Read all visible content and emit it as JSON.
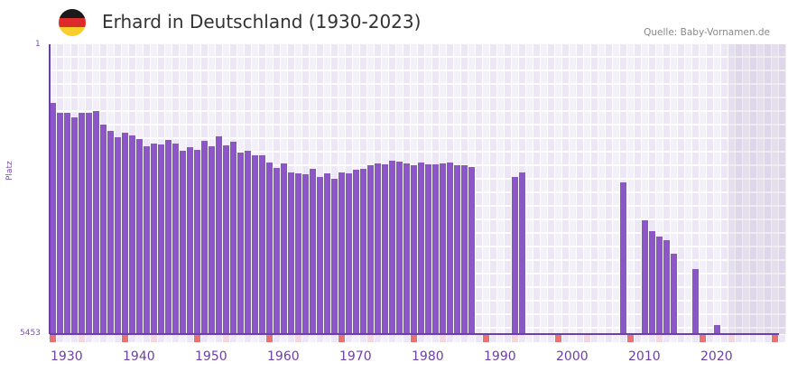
{
  "header": {
    "title": "Erhard in Deutschland (1930-2023)",
    "source": "Quelle: Baby-Vornamen.de",
    "flag_colors": [
      "#1a1a1a",
      "#dd2b2b",
      "#f9cf2d"
    ]
  },
  "colors": {
    "bar": "#8c55c8",
    "axis": "#6d3fa8",
    "grid_a": "#f3effb",
    "grid_b": "#ece6f7",
    "decade_marker": "#e57373",
    "mid_marker": "#f5d5de"
  },
  "chart_data": {
    "type": "bar",
    "title": "Erhard in Deutschland (1930-2023)",
    "xlabel": "",
    "ylabel": "Platz",
    "y_axis_inverted": true,
    "ylim": [
      1,
      5453
    ],
    "y_tick_labels": [
      "1",
      "5453"
    ],
    "x_range": [
      1930,
      2031
    ],
    "x_tick_labels": [
      "1930",
      "1940",
      "1950",
      "1960",
      "1970",
      "1980",
      "1990",
      "2000",
      "2010",
      "2020"
    ],
    "shaded_future_from": 2024,
    "grid": true,
    "legend": null,
    "series": [
      {
        "name": "Platz",
        "points": [
          {
            "year": 1930,
            "rank": 1109
          },
          {
            "year": 1931,
            "rank": 1296
          },
          {
            "year": 1932,
            "rank": 1296
          },
          {
            "year": 1933,
            "rank": 1381
          },
          {
            "year": 1934,
            "rank": 1296
          },
          {
            "year": 1935,
            "rank": 1296
          },
          {
            "year": 1936,
            "rank": 1262
          },
          {
            "year": 1937,
            "rank": 1517
          },
          {
            "year": 1938,
            "rank": 1636
          },
          {
            "year": 1939,
            "rank": 1755
          },
          {
            "year": 1940,
            "rank": 1670
          },
          {
            "year": 1941,
            "rank": 1721
          },
          {
            "year": 1942,
            "rank": 1789
          },
          {
            "year": 1943,
            "rank": 1925
          },
          {
            "year": 1944,
            "rank": 1874
          },
          {
            "year": 1945,
            "rank": 1891
          },
          {
            "year": 1946,
            "rank": 1806
          },
          {
            "year": 1947,
            "rank": 1874
          },
          {
            "year": 1948,
            "rank": 2010
          },
          {
            "year": 1949,
            "rank": 1942
          },
          {
            "year": 1950,
            "rank": 1993
          },
          {
            "year": 1951,
            "rank": 1823
          },
          {
            "year": 1952,
            "rank": 1925
          },
          {
            "year": 1953,
            "rank": 1738
          },
          {
            "year": 1954,
            "rank": 1908
          },
          {
            "year": 1955,
            "rank": 1840
          },
          {
            "year": 1956,
            "rank": 2044
          },
          {
            "year": 1957,
            "rank": 2010
          },
          {
            "year": 1958,
            "rank": 2095
          },
          {
            "year": 1959,
            "rank": 2095
          },
          {
            "year": 1960,
            "rank": 2231
          },
          {
            "year": 1961,
            "rank": 2333
          },
          {
            "year": 1962,
            "rank": 2248
          },
          {
            "year": 1963,
            "rank": 2418
          },
          {
            "year": 1964,
            "rank": 2435
          },
          {
            "year": 1965,
            "rank": 2452
          },
          {
            "year": 1966,
            "rank": 2350
          },
          {
            "year": 1967,
            "rank": 2503
          },
          {
            "year": 1968,
            "rank": 2435
          },
          {
            "year": 1969,
            "rank": 2537
          },
          {
            "year": 1970,
            "rank": 2418
          },
          {
            "year": 1971,
            "rank": 2435
          },
          {
            "year": 1972,
            "rank": 2367
          },
          {
            "year": 1973,
            "rank": 2350
          },
          {
            "year": 1974,
            "rank": 2282
          },
          {
            "year": 1975,
            "rank": 2248
          },
          {
            "year": 1976,
            "rank": 2265
          },
          {
            "year": 1977,
            "rank": 2197
          },
          {
            "year": 1978,
            "rank": 2214
          },
          {
            "year": 1979,
            "rank": 2248
          },
          {
            "year": 1980,
            "rank": 2282
          },
          {
            "year": 1981,
            "rank": 2231
          },
          {
            "year": 1982,
            "rank": 2265
          },
          {
            "year": 1983,
            "rank": 2265
          },
          {
            "year": 1984,
            "rank": 2248
          },
          {
            "year": 1985,
            "rank": 2231
          },
          {
            "year": 1986,
            "rank": 2282
          },
          {
            "year": 1987,
            "rank": 2282
          },
          {
            "year": 1988,
            "rank": 2316
          },
          {
            "year": 1994,
            "rank": 2503
          },
          {
            "year": 1995,
            "rank": 2418
          },
          {
            "year": 2009,
            "rank": 2604
          },
          {
            "year": 2012,
            "rank": 3318
          },
          {
            "year": 2013,
            "rank": 3522
          },
          {
            "year": 2014,
            "rank": 3624
          },
          {
            "year": 2015,
            "rank": 3692
          },
          {
            "year": 2016,
            "rank": 3947
          },
          {
            "year": 2019,
            "rank": 4236
          },
          {
            "year": 2022,
            "rank": 5283
          }
        ]
      }
    ]
  },
  "axis": {
    "y_top_label": "1",
    "y_bottom_label": "5453",
    "y_title": "Platz"
  }
}
